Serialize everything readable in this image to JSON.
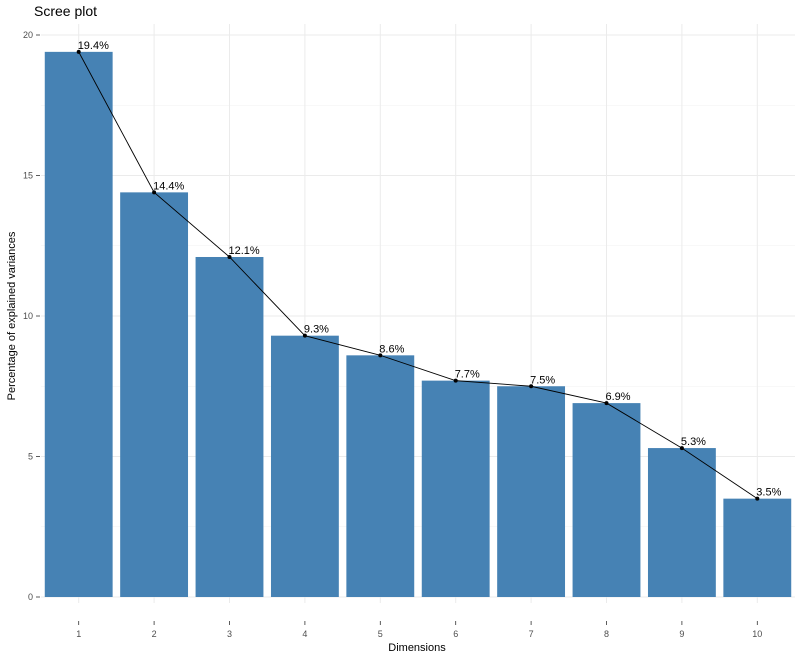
{
  "chart_data": {
    "type": "bar",
    "title": "Scree plot",
    "xlabel": "Dimensions",
    "ylabel": "Percentage of explained variances",
    "categories": [
      "1",
      "2",
      "3",
      "4",
      "5",
      "6",
      "7",
      "8",
      "9",
      "10"
    ],
    "values": [
      19.4,
      14.4,
      12.1,
      9.3,
      8.6,
      7.7,
      7.5,
      6.9,
      5.3,
      3.5
    ],
    "data_labels": [
      "19.4%",
      "14.4%",
      "12.1%",
      "9.3%",
      "8.6%",
      "7.7%",
      "7.5%",
      "6.9%",
      "5.3%",
      "3.5%"
    ],
    "yticks": [
      0,
      5,
      10,
      15,
      20
    ],
    "ylim": [
      0,
      20.4
    ],
    "grid": true,
    "overlay": "line with points connecting bar tops",
    "bar_color": "#4682b4",
    "line_color": "#000000"
  }
}
